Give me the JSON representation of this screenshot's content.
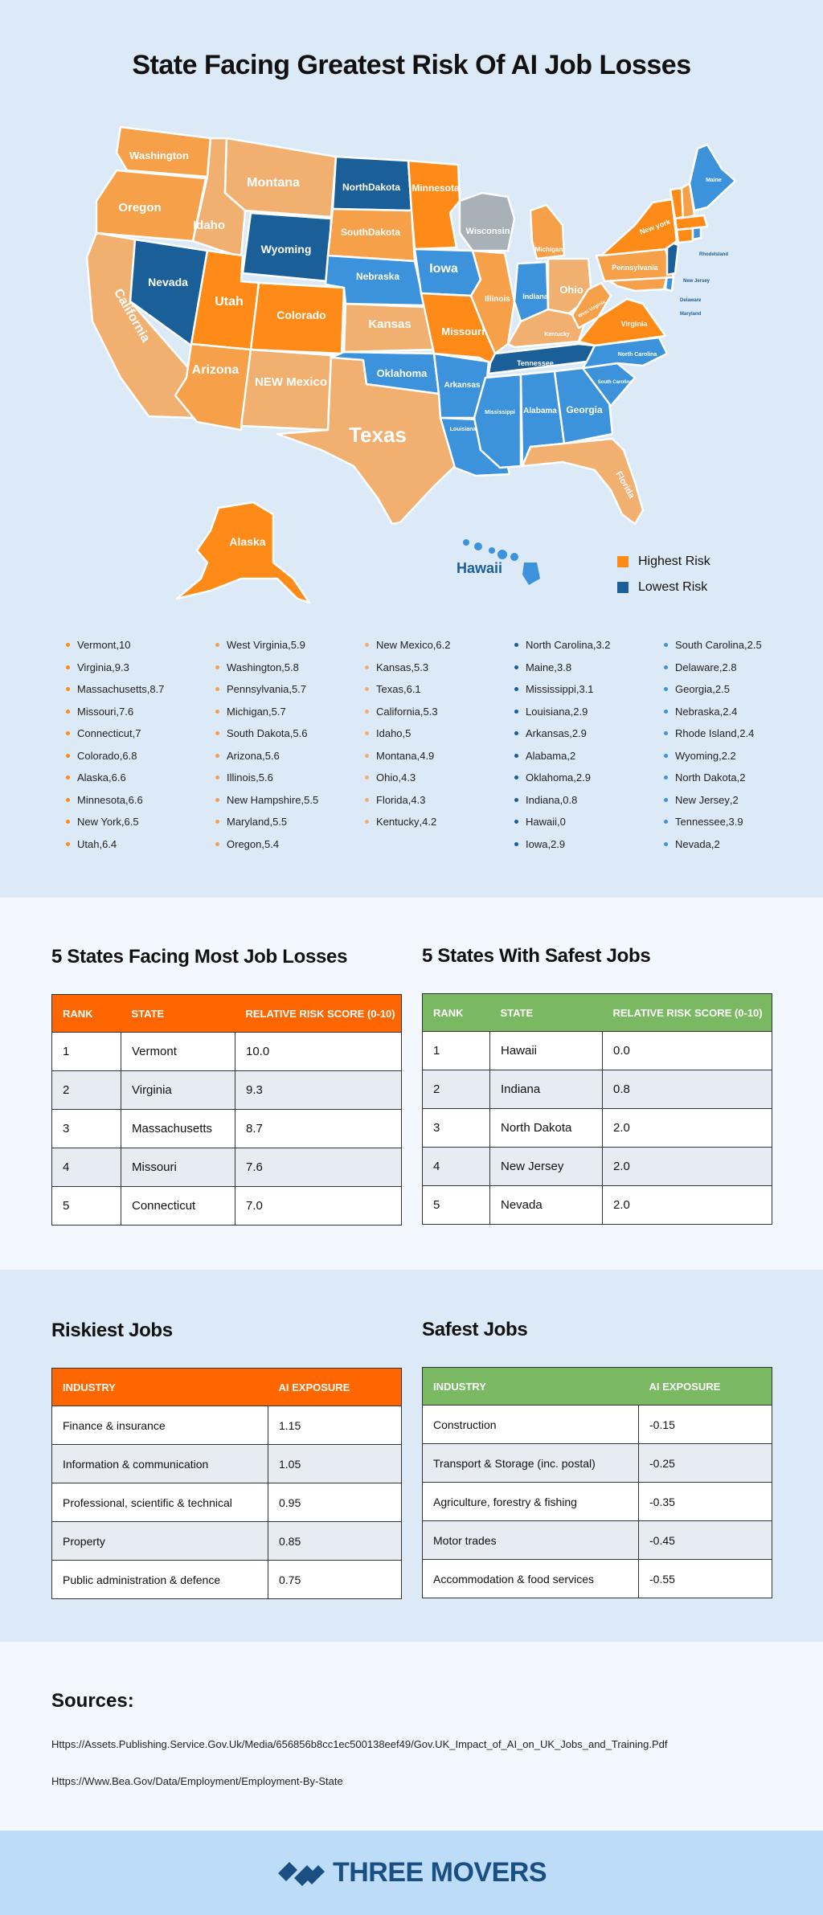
{
  "title": "State Facing Greatest Risk Of AI Job Losses",
  "colors": {
    "highest": "#fe8a17",
    "lowest": "#1b5f99",
    "high_light": "#f7a04a",
    "mid": "#f1af70",
    "low_mid": "#3d93db",
    "gray": "#a8b0b8",
    "orange_header": "#ff6600",
    "green_header": "#7ab862"
  },
  "legend": [
    {
      "label": "Highest Risk",
      "color": "#fe8a17"
    },
    {
      "label": "Lowest Risk",
      "color": "#1b5f99"
    }
  ],
  "map_labels": {
    "washington": "Washington",
    "oregon": "Oregon",
    "california": "California",
    "nevada": "Nevada",
    "idaho": "Idaho",
    "montana": "Montana",
    "wyoming": "Wyoming",
    "utah": "Utah",
    "arizona": "Arizona",
    "colorado": "Colorado",
    "new_mexico": "NEW Mexico",
    "texas": "Texas",
    "north_dakota": "NorthDakota",
    "south_dakota": "SouthDakota",
    "nebraska": "Nebraska",
    "kansas": "Kansas",
    "oklahoma": "Oklahoma",
    "minnesota": "Minnesota",
    "iowa": "Iowa",
    "missouri": "Missouri",
    "arkansas": "Arkansas",
    "louisiana": "Louisiana",
    "wisconsin": "Wisconsin",
    "illinois": "Illinois",
    "michigan": "Michigan",
    "indiana": "Indiana",
    "ohio": "Ohio",
    "kentucky": "Kentucky",
    "tennessee": "Tennessee",
    "mississippi": "Mississippi",
    "alabama": "Alabama",
    "georgia": "Georgia",
    "florida": "Florida",
    "south_carolina": "South Carolina",
    "north_carolina": "North Carolina",
    "virginia": "Virginia",
    "west_virginia": "West Virginia",
    "pennsylvania": "Pennsylvania",
    "new_york": "New york",
    "maine": "Maine",
    "rhode_island": "RhodeIsland",
    "new_jersey": "New Jersey",
    "delaware": "Delaware",
    "maryland": "Maryland",
    "alaska": "Alaska",
    "hawaii": "Hawaii"
  },
  "chart_data": {
    "type": "table",
    "columns": [
      [
        {
          "state": "Vermont",
          "score": 10,
          "color": "#fe8a17"
        },
        {
          "state": "Virginia",
          "score": 9.3,
          "color": "#fe8a17"
        },
        {
          "state": "Massachusetts",
          "score": 8.7,
          "color": "#fe8a17"
        },
        {
          "state": "Missouri",
          "score": 7.6,
          "color": "#fe8a17"
        },
        {
          "state": "Connecticut",
          "score": 7,
          "color": "#fe8a17"
        },
        {
          "state": "Colorado",
          "score": 6.8,
          "color": "#fe8a17"
        },
        {
          "state": "Alaska",
          "score": 6.6,
          "color": "#fe8a17"
        },
        {
          "state": "Minnesota",
          "score": 6.6,
          "color": "#fe8a17"
        },
        {
          "state": "New York",
          "score": 6.5,
          "color": "#fe8a17"
        },
        {
          "state": "Utah",
          "score": 6.4,
          "color": "#fe8a17"
        }
      ],
      [
        {
          "state": "West Virginia",
          "score": 5.9,
          "color": "#f7a04a"
        },
        {
          "state": "Washington",
          "score": 5.8,
          "color": "#f7a04a"
        },
        {
          "state": "Pennsylvania",
          "score": 5.7,
          "color": "#f7a04a"
        },
        {
          "state": "Michigan",
          "score": 5.7,
          "color": "#f7a04a"
        },
        {
          "state": "South Dakota",
          "score": 5.6,
          "color": "#f7a04a"
        },
        {
          "state": "Arizona",
          "score": 5.6,
          "color": "#f7a04a"
        },
        {
          "state": "Illinois",
          "score": 5.6,
          "color": "#f7a04a"
        },
        {
          "state": "New Hampshire",
          "score": 5.5,
          "color": "#f7a04a"
        },
        {
          "state": "Maryland",
          "score": 5.5,
          "color": "#f7a04a"
        },
        {
          "state": "Oregon",
          "score": 5.4,
          "color": "#f7a04a"
        }
      ],
      [
        {
          "state": "New Mexico",
          "score": 6.2,
          "color": "#f1af70"
        },
        {
          "state": "Kansas",
          "score": 5.3,
          "color": "#f1af70"
        },
        {
          "state": "Texas",
          "score": 6.1,
          "color": "#f1af70"
        },
        {
          "state": "California",
          "score": 5.3,
          "color": "#f1af70"
        },
        {
          "state": "Idaho",
          "score": 5,
          "color": "#f1af70"
        },
        {
          "state": "Montana",
          "score": 4.9,
          "color": "#f1af70"
        },
        {
          "state": "Ohio",
          "score": 4.3,
          "color": "#f1af70"
        },
        {
          "state": "Florida",
          "score": 4.3,
          "color": "#f1af70"
        },
        {
          "state": "Kentucky",
          "score": 4.2,
          "color": "#f1af70"
        }
      ],
      [
        {
          "state": "North Carolina",
          "score": 3.2,
          "color": "#1b5f99"
        },
        {
          "state": "Maine",
          "score": 3.8,
          "color": "#1b5f99"
        },
        {
          "state": "Mississippi",
          "score": 3.1,
          "color": "#1b5f99"
        },
        {
          "state": "Louisiana",
          "score": 2.9,
          "color": "#1b5f99"
        },
        {
          "state": "Arkansas",
          "score": 2.9,
          "color": "#1b5f99"
        },
        {
          "state": "Alabama",
          "score": 2,
          "color": "#1b5f99"
        },
        {
          "state": "Oklahoma",
          "score": 2.9,
          "color": "#1b5f99"
        },
        {
          "state": "Indiana",
          "score": 0.8,
          "color": "#1b5f99"
        },
        {
          "state": "Hawaii",
          "score": 0,
          "color": "#1b5f99"
        },
        {
          "state": "Iowa",
          "score": 2.9,
          "color": "#1b5f99"
        }
      ],
      [
        {
          "state": "South Carolina",
          "score": 2.5,
          "color": "#3d93db"
        },
        {
          "state": "Delaware",
          "score": 2.8,
          "color": "#3d93db"
        },
        {
          "state": "Georgia",
          "score": 2.5,
          "color": "#3d93db"
        },
        {
          "state": "Nebraska",
          "score": 2.4,
          "color": "#3d93db"
        },
        {
          "state": "Rhode Island",
          "score": 2.4,
          "color": "#3d93db"
        },
        {
          "state": "Wyoming",
          "score": 2.2,
          "color": "#3d93db"
        },
        {
          "state": "North Dakota",
          "score": 2,
          "color": "#3d93db"
        },
        {
          "state": "New Jersey",
          "score": 2,
          "color": "#3d93db"
        },
        {
          "state": "Tennessee",
          "score": 3.9,
          "color": "#3d93db"
        },
        {
          "state": "Nevada",
          "score": 2,
          "color": "#3d93db"
        }
      ]
    ]
  },
  "most_losses": {
    "title": "5 States Facing Most Job Losses",
    "headers": [
      "RANK",
      "STATE",
      "RELATIVE RISK SCORE (0-10)"
    ],
    "rows": [
      [
        "1",
        "Vermont",
        "10.0"
      ],
      [
        "2",
        "Virginia",
        "9.3"
      ],
      [
        "3",
        "Massachusetts",
        "8.7"
      ],
      [
        "4",
        "Missouri",
        "7.6"
      ],
      [
        "5",
        "Connecticut",
        "7.0"
      ]
    ]
  },
  "safest_states": {
    "title": "5 States With Safest Jobs",
    "headers": [
      "RANK",
      "STATE",
      "RELATIVE RISK SCORE (0-10)"
    ],
    "rows": [
      [
        "1",
        "Hawaii",
        "0.0"
      ],
      [
        "2",
        "Indiana",
        "0.8"
      ],
      [
        "3",
        "North Dakota",
        "2.0"
      ],
      [
        "4",
        "New Jersey",
        "2.0"
      ],
      [
        "5",
        "Nevada",
        "2.0"
      ]
    ]
  },
  "riskiest_jobs": {
    "title": "Riskiest Jobs",
    "headers": [
      "INDUSTRY",
      "AI EXPOSURE"
    ],
    "rows": [
      [
        "Finance & insurance",
        "1.15"
      ],
      [
        "Information & communication",
        "1.05"
      ],
      [
        "Professional, scientific & technical",
        "0.95"
      ],
      [
        "Property",
        "0.85"
      ],
      [
        "Public administration & defence",
        "0.75"
      ]
    ]
  },
  "safest_jobs": {
    "title": "Safest Jobs",
    "headers": [
      "INDUSTRY",
      "AI EXPOSURE"
    ],
    "rows": [
      [
        "Construction",
        "-0.15"
      ],
      [
        "Transport & Storage (inc. postal)",
        "-0.25"
      ],
      [
        "Agriculture, forestry & fishing",
        "-0.35"
      ],
      [
        "Motor trades",
        "-0.45"
      ],
      [
        "Accommodation & food services",
        "-0.55"
      ]
    ]
  },
  "sources": {
    "title": "Sources:",
    "links": [
      "Https://Assets.Publishing.Service.Gov.Uk/Media/656856b8cc1ec500138eef49/Gov.UK_Impact_of_AI_on_UK_Jobs_and_Training.Pdf",
      "Https://Www.Bea.Gov/Data/Employment/Employment-By-State"
    ]
  },
  "brand": {
    "name": "THREE MOVERS"
  }
}
